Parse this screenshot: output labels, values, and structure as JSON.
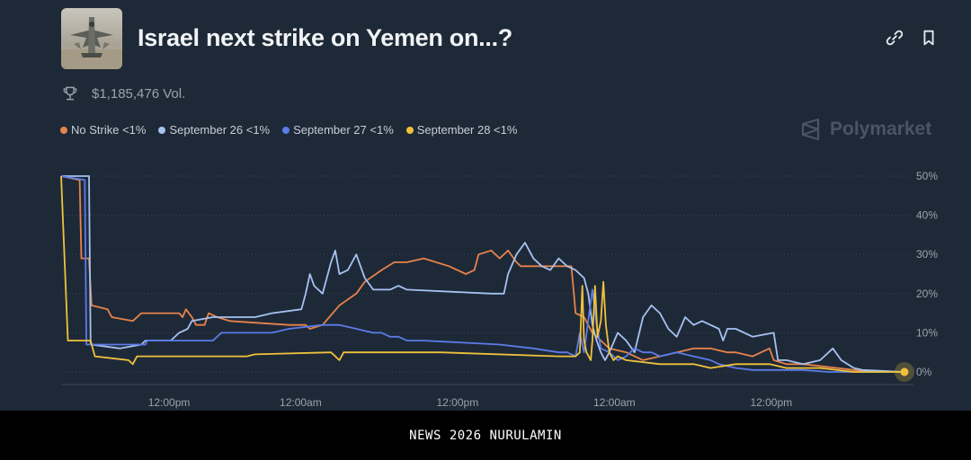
{
  "header": {
    "title": "Israel next strike on Yemen on...?",
    "volume": "$1,185,476 Vol."
  },
  "brand": {
    "name": "Polymarket"
  },
  "footer": {
    "text": "NEWS 2026 NURULAMIN"
  },
  "chart_data": {
    "type": "line",
    "title": "Israel next strike on Yemen on...?",
    "y_tick_labels": [
      "0%",
      "10%",
      "20%",
      "30%",
      "40%",
      "50%"
    ],
    "y_ticks": [
      0,
      10,
      20,
      30,
      40,
      50
    ],
    "ylim": [
      0,
      50
    ],
    "xlim": [
      0,
      100
    ],
    "x_ticks": [
      {
        "label": "12:00pm",
        "t": 12.8
      },
      {
        "label": "12:00am",
        "t": 28.4
      },
      {
        "label": "12:00pm",
        "t": 47.0
      },
      {
        "label": "12:00am",
        "t": 65.6
      },
      {
        "label": "12:00pm",
        "t": 84.2
      }
    ],
    "grid": true,
    "series": [
      {
        "name": "No Strike <1%",
        "color": "#e8834a",
        "points": [
          [
            0,
            50
          ],
          [
            2.2,
            49
          ],
          [
            2.4,
            29
          ],
          [
            3.3,
            29
          ],
          [
            3.6,
            17
          ],
          [
            5.5,
            16
          ],
          [
            6,
            14
          ],
          [
            8.5,
            13
          ],
          [
            9.5,
            15
          ],
          [
            14,
            15
          ],
          [
            14.4,
            14
          ],
          [
            14.8,
            16
          ],
          [
            15.5,
            14
          ],
          [
            16,
            12
          ],
          [
            17,
            12
          ],
          [
            17.5,
            15
          ],
          [
            18.5,
            14
          ],
          [
            20,
            13
          ],
          [
            27,
            12
          ],
          [
            29,
            12
          ],
          [
            29.5,
            11
          ],
          [
            31,
            12
          ],
          [
            33,
            17
          ],
          [
            35,
            20
          ],
          [
            36,
            23
          ],
          [
            38,
            26
          ],
          [
            39.5,
            28
          ],
          [
            41,
            28
          ],
          [
            43,
            29
          ],
          [
            46,
            27
          ],
          [
            48,
            25
          ],
          [
            49,
            26
          ],
          [
            49.5,
            30
          ],
          [
            51,
            31
          ],
          [
            52,
            29
          ],
          [
            53,
            31
          ],
          [
            54,
            28
          ],
          [
            54.5,
            27
          ],
          [
            59,
            27
          ],
          [
            60.5,
            27
          ],
          [
            60.8,
            20
          ],
          [
            61,
            15
          ],
          [
            62,
            14
          ],
          [
            63,
            10
          ],
          [
            64,
            8
          ],
          [
            65,
            6
          ],
          [
            67,
            5
          ],
          [
            69,
            3
          ],
          [
            71,
            4
          ],
          [
            73,
            5
          ],
          [
            75,
            6
          ],
          [
            77,
            6
          ],
          [
            79,
            5
          ],
          [
            80,
            5
          ],
          [
            82,
            4
          ],
          [
            83,
            5
          ],
          [
            84,
            6
          ],
          [
            84.5,
            3
          ],
          [
            86,
            2
          ],
          [
            88,
            2
          ],
          [
            92,
            1
          ],
          [
            94,
            0.5
          ],
          [
            96,
            0
          ],
          [
            100,
            0
          ]
        ]
      },
      {
        "name": "September 26 <1%",
        "color": "#a6c2f0",
        "points": [
          [
            0,
            50
          ],
          [
            3.3,
            50
          ],
          [
            3.5,
            7
          ],
          [
            7,
            6
          ],
          [
            9.5,
            7
          ],
          [
            10,
            8
          ],
          [
            13,
            8
          ],
          [
            14,
            10
          ],
          [
            15,
            11
          ],
          [
            15.5,
            13
          ],
          [
            18,
            14
          ],
          [
            23,
            14
          ],
          [
            25,
            15
          ],
          [
            28.5,
            16
          ],
          [
            29,
            20
          ],
          [
            29.5,
            25
          ],
          [
            30,
            22
          ],
          [
            31,
            20
          ],
          [
            32,
            28
          ],
          [
            32.5,
            31
          ],
          [
            33,
            25
          ],
          [
            34,
            26
          ],
          [
            35,
            30
          ],
          [
            36,
            24
          ],
          [
            37,
            21
          ],
          [
            39,
            21
          ],
          [
            40,
            22
          ],
          [
            41,
            21
          ],
          [
            51,
            20
          ],
          [
            52.5,
            20
          ],
          [
            53,
            25
          ],
          [
            54,
            30
          ],
          [
            55,
            33
          ],
          [
            56,
            29
          ],
          [
            57,
            27
          ],
          [
            58,
            26
          ],
          [
            59,
            29
          ],
          [
            60,
            27
          ],
          [
            61,
            26
          ],
          [
            62,
            24
          ],
          [
            62.5,
            20
          ],
          [
            63,
            12
          ],
          [
            63.5,
            8
          ],
          [
            64,
            5
          ],
          [
            64.5,
            3
          ],
          [
            65,
            5
          ],
          [
            66,
            10
          ],
          [
            67,
            8
          ],
          [
            68,
            5
          ],
          [
            69,
            14
          ],
          [
            70,
            17
          ],
          [
            71,
            15
          ],
          [
            72,
            11
          ],
          [
            73,
            9
          ],
          [
            74,
            14
          ],
          [
            75,
            12
          ],
          [
            76,
            13
          ],
          [
            77,
            12
          ],
          [
            78,
            11
          ],
          [
            78.5,
            8
          ],
          [
            79,
            11
          ],
          [
            80,
            11
          ],
          [
            82,
            9
          ],
          [
            84.5,
            10
          ],
          [
            85,
            3
          ],
          [
            86,
            3
          ],
          [
            88,
            2
          ],
          [
            90,
            3
          ],
          [
            91.5,
            6
          ],
          [
            92.5,
            3
          ],
          [
            94,
            1
          ],
          [
            95,
            0.5
          ],
          [
            100,
            0
          ]
        ]
      },
      {
        "name": "September 27 <1%",
        "color": "#5b7ce8",
        "points": [
          [
            0,
            50
          ],
          [
            2.8,
            49
          ],
          [
            3,
            7
          ],
          [
            10,
            7
          ],
          [
            10.2,
            8
          ],
          [
            18,
            8
          ],
          [
            19,
            10
          ],
          [
            25,
            10
          ],
          [
            27,
            11
          ],
          [
            31,
            12
          ],
          [
            33,
            12
          ],
          [
            35,
            11
          ],
          [
            37,
            10
          ],
          [
            38,
            10
          ],
          [
            39,
            9
          ],
          [
            40,
            9
          ],
          [
            41,
            8
          ],
          [
            43,
            8
          ],
          [
            52,
            7
          ],
          [
            56,
            6
          ],
          [
            59,
            5
          ],
          [
            60,
            5
          ],
          [
            61,
            4
          ],
          [
            61.5,
            10
          ],
          [
            62,
            5
          ],
          [
            63,
            21
          ],
          [
            63.5,
            12
          ],
          [
            64,
            6
          ],
          [
            65,
            5
          ],
          [
            66,
            3
          ],
          [
            67,
            4
          ],
          [
            68,
            6
          ],
          [
            69,
            5
          ],
          [
            70,
            5
          ],
          [
            71,
            4
          ],
          [
            73,
            5
          ],
          [
            75,
            4
          ],
          [
            77,
            3
          ],
          [
            78,
            2
          ],
          [
            80,
            1
          ],
          [
            82,
            0.5
          ],
          [
            85,
            0.5
          ],
          [
            88,
            0.5
          ],
          [
            91,
            0
          ],
          [
            100,
            0
          ]
        ]
      },
      {
        "name": "September 28 <1%",
        "color": "#f0c23c",
        "points": [
          [
            0,
            50
          ],
          [
            0.8,
            8
          ],
          [
            3.5,
            8
          ],
          [
            4,
            4
          ],
          [
            8,
            3
          ],
          [
            8.5,
            2
          ],
          [
            9,
            4
          ],
          [
            22,
            4
          ],
          [
            23,
            4.5
          ],
          [
            32,
            5
          ],
          [
            33,
            3
          ],
          [
            33.5,
            5
          ],
          [
            45,
            5
          ],
          [
            59,
            4
          ],
          [
            61,
            4
          ],
          [
            61.5,
            5
          ],
          [
            61.8,
            22
          ],
          [
            62,
            8
          ],
          [
            62.3,
            5
          ],
          [
            62.8,
            3
          ],
          [
            63,
            8
          ],
          [
            63.3,
            22
          ],
          [
            63.6,
            9
          ],
          [
            64,
            13
          ],
          [
            64.3,
            23
          ],
          [
            64.6,
            12
          ],
          [
            65,
            5
          ],
          [
            65.5,
            3
          ],
          [
            66,
            4
          ],
          [
            67,
            3
          ],
          [
            71,
            2
          ],
          [
            75,
            2
          ],
          [
            77,
            1
          ],
          [
            80,
            2
          ],
          [
            84,
            2
          ],
          [
            86,
            1
          ],
          [
            90,
            1
          ],
          [
            94,
            0
          ],
          [
            100,
            0
          ]
        ]
      }
    ]
  }
}
